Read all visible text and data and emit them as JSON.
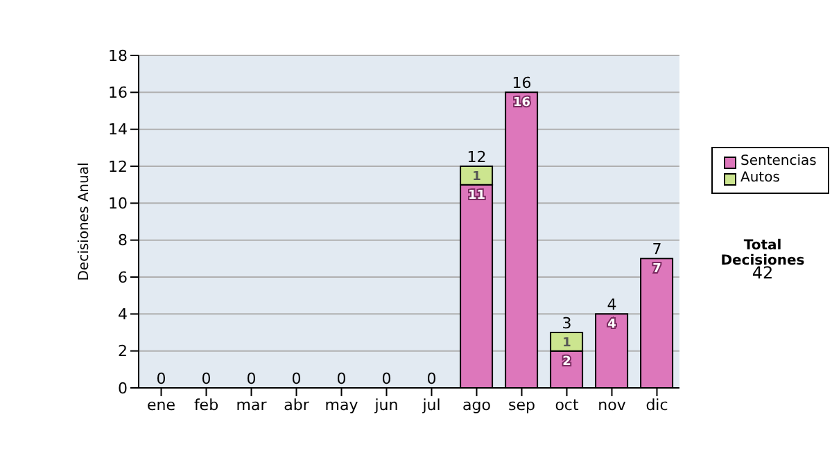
{
  "chart_data": {
    "type": "bar",
    "stacked": true,
    "ylabel": "Decisiones Anual",
    "categories": [
      "ene",
      "feb",
      "mar",
      "abr",
      "may",
      "jun",
      "jul",
      "ago",
      "sep",
      "oct",
      "nov",
      "dic"
    ],
    "series": [
      {
        "name": "Sentencias",
        "color": "#dd77bb",
        "values": [
          0,
          0,
          0,
          0,
          0,
          0,
          0,
          11,
          16,
          2,
          4,
          7
        ],
        "value_labels": [
          null,
          null,
          null,
          null,
          null,
          null,
          null,
          "11",
          "16",
          "2",
          "4",
          "7"
        ]
      },
      {
        "name": "Autos",
        "color": "#cce58f",
        "values": [
          0,
          0,
          0,
          0,
          0,
          0,
          0,
          1,
          0,
          1,
          0,
          0
        ],
        "value_labels": [
          null,
          null,
          null,
          null,
          null,
          null,
          null,
          "1",
          null,
          "1",
          null,
          null
        ]
      }
    ],
    "totals": [
      "0",
      "0",
      "0",
      "0",
      "0",
      "0",
      "0",
      "12",
      "16",
      "3",
      "4",
      "7"
    ],
    "ylim": [
      0,
      18
    ],
    "yticks": [
      0,
      2,
      4,
      6,
      8,
      10,
      12,
      14,
      16,
      18
    ],
    "grid": "y",
    "legend": "right",
    "annotations": [
      "Total Decisiones",
      "42"
    ]
  }
}
